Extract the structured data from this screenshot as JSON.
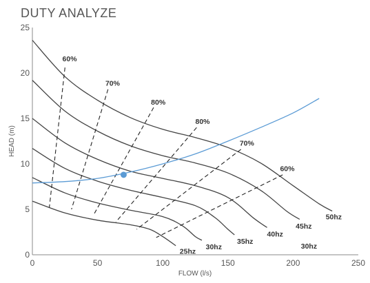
{
  "chart_data": {
    "type": "line",
    "title": "DUTY ANALYZE",
    "xlabel": "FLOW (l/s)",
    "ylabel": "HEAD (m)",
    "xlim": [
      0,
      250
    ],
    "ylim": [
      0,
      25
    ],
    "xticks": [
      "0",
      "50",
      "100",
      "150",
      "200",
      "250"
    ],
    "yticks": [
      "0",
      "5",
      "10",
      "15",
      "20",
      "25"
    ],
    "pump_curves": [
      {
        "label": "50hz",
        "points": [
          [
            0,
            23.6
          ],
          [
            25,
            19.6
          ],
          [
            50,
            17.0
          ],
          [
            75,
            15.1
          ],
          [
            100,
            13.8
          ],
          [
            125,
            12.9
          ],
          [
            150,
            11.8
          ],
          [
            175,
            10.1
          ],
          [
            200,
            7.6
          ],
          [
            220,
            5.6
          ],
          [
            230,
            4.8
          ]
        ]
      },
      {
        "label": "45hz",
        "points": [
          [
            0,
            19.2
          ],
          [
            25,
            15.8
          ],
          [
            50,
            13.6
          ],
          [
            75,
            12.0
          ],
          [
            100,
            10.9
          ],
          [
            125,
            10.1
          ],
          [
            150,
            9.0
          ],
          [
            175,
            7.1
          ],
          [
            195,
            4.8
          ],
          [
            205,
            3.9
          ]
        ]
      },
      {
        "label": "40hz",
        "points": [
          [
            0,
            15.0
          ],
          [
            25,
            12.3
          ],
          [
            50,
            10.5
          ],
          [
            75,
            9.2
          ],
          [
            100,
            8.4
          ],
          [
            125,
            7.6
          ],
          [
            150,
            6.3
          ],
          [
            170,
            4.0
          ],
          [
            180,
            3.0
          ]
        ]
      },
      {
        "label": "35hz",
        "points": [
          [
            0,
            11.7
          ],
          [
            25,
            9.5
          ],
          [
            50,
            8.1
          ],
          [
            75,
            7.1
          ],
          [
            100,
            6.3
          ],
          [
            125,
            5.4
          ],
          [
            140,
            4.1
          ],
          [
            150,
            2.8
          ],
          [
            155,
            2.2
          ]
        ]
      },
      {
        "label": "30hz",
        "points": [
          [
            0,
            8.5
          ],
          [
            25,
            6.8
          ],
          [
            50,
            5.7
          ],
          [
            75,
            4.9
          ],
          [
            100,
            4.2
          ],
          [
            115,
            3.2
          ],
          [
            125,
            2.0
          ],
          [
            130,
            1.6
          ]
        ]
      },
      {
        "label": "25hz",
        "points": [
          [
            0,
            5.9
          ],
          [
            25,
            4.6
          ],
          [
            50,
            3.8
          ],
          [
            75,
            3.3
          ],
          [
            90,
            2.8
          ],
          [
            100,
            2.0
          ],
          [
            110,
            1.0
          ]
        ]
      }
    ],
    "freq_labels": [
      {
        "text": "50hz",
        "x": 225,
        "y": 4.2
      },
      {
        "text": "45hz",
        "x": 202,
        "y": 3.2
      },
      {
        "text": "40hz",
        "x": 180,
        "y": 2.3
      },
      {
        "text": "35hz",
        "x": 157,
        "y": 1.5
      },
      {
        "text": "30hz",
        "x": 133,
        "y": 0.9
      },
      {
        "text": "25hz",
        "x": 113,
        "y": 0.4
      },
      {
        "text": "30hz",
        "x": 206,
        "y": 1.0
      }
    ],
    "efficiency_lines": [
      {
        "label": "60%",
        "points": [
          [
            25,
            20.6
          ],
          [
            13,
            5.2
          ]
        ]
      },
      {
        "label": "70%",
        "points": [
          [
            58,
            18.2
          ],
          [
            30,
            5.0
          ]
        ]
      },
      {
        "label": "80%",
        "points": [
          [
            93,
            16.2
          ],
          [
            47,
            4.4
          ]
        ]
      },
      {
        "label": "80%",
        "points": [
          [
            126,
            14.0
          ],
          [
            64,
            3.6
          ]
        ]
      },
      {
        "label": "70%",
        "points": [
          [
            160,
            11.6
          ],
          [
            80,
            2.8
          ]
        ]
      },
      {
        "label": "60%",
        "points": [
          [
            192,
            8.8
          ],
          [
            95,
            1.9
          ]
        ]
      }
    ],
    "eff_labels": [
      {
        "text": "60%",
        "x": 23,
        "y": 21.6
      },
      {
        "text": "70%",
        "x": 56,
        "y": 18.9
      },
      {
        "text": "80%",
        "x": 91,
        "y": 16.8
      },
      {
        "text": "80%",
        "x": 125,
        "y": 14.7
      },
      {
        "text": "70%",
        "x": 159,
        "y": 12.3
      },
      {
        "text": "60%",
        "x": 190,
        "y": 9.5
      }
    ],
    "system_curve": {
      "color": "#5b9bd5",
      "points": [
        [
          0,
          7.9
        ],
        [
          25,
          8.05
        ],
        [
          50,
          8.4
        ],
        [
          75,
          9.1
        ],
        [
          100,
          10.0
        ],
        [
          125,
          11.1
        ],
        [
          150,
          12.5
        ],
        [
          175,
          14.0
        ],
        [
          200,
          15.6
        ],
        [
          220,
          17.2
        ]
      ]
    },
    "duty_point": {
      "x": 70,
      "y": 8.8,
      "color": "#5b9bd5"
    },
    "pump_curve_color": "#444444",
    "efficiency_color": "#222222"
  }
}
